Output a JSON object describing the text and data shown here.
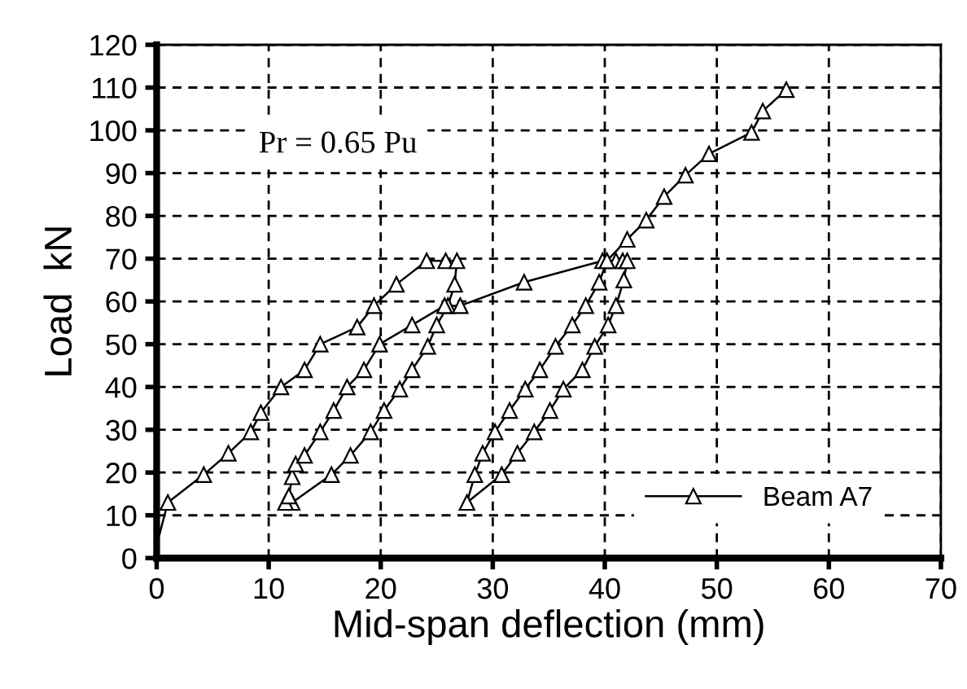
{
  "chart_data": {
    "type": "line",
    "xlabel": "Mid-span deflection (mm)",
    "ylabel": "Load  kN",
    "xlim": [
      0,
      70
    ],
    "ylim": [
      0,
      120
    ],
    "xticks": [
      0,
      10,
      20,
      30,
      40,
      50,
      60,
      70
    ],
    "yticks": [
      0,
      10,
      20,
      30,
      40,
      50,
      60,
      70,
      80,
      90,
      100,
      110,
      120
    ],
    "grid": true,
    "legend": "bottom right",
    "marker": "triangle",
    "line_style": "solid",
    "annotations": [
      "Pr = 0.65 Pu"
    ],
    "series": [
      {
        "name": "Beam A7",
        "color": "#000000",
        "x": [
          0,
          1.0,
          4.2,
          6.4,
          8.4,
          9.3,
          11.1,
          13.2,
          14.6,
          17.9,
          19.4,
          21.4,
          24.1,
          25.8,
          26.8,
          26.6,
          26.0,
          25.0,
          24.2,
          22.8,
          21.7,
          20.3,
          19.1,
          17.3,
          15.6,
          12.1,
          11.5,
          11.8,
          12.1,
          12.4,
          13.2,
          14.6,
          15.8,
          17.0,
          18.5,
          19.9,
          22.8,
          25.7,
          27.1,
          32.8,
          39.8,
          41.0,
          41.6,
          42.0,
          41.7,
          41.0,
          40.3,
          39.1,
          38.0,
          36.3,
          35.1,
          33.7,
          32.2,
          30.8,
          27.7,
          28.4,
          29.1,
          30.2,
          31.5,
          32.9,
          34.2,
          35.6,
          37.1,
          38.3,
          39.5,
          40.2,
          42.0,
          43.7,
          45.3,
          47.2,
          49.3,
          53.1,
          54.1,
          56.2
        ],
        "values": [
          3,
          13,
          19.5,
          24.5,
          29.5,
          34,
          40,
          44,
          50,
          54,
          59,
          64,
          69.5,
          69.5,
          69.5,
          64,
          59,
          54.5,
          49.5,
          44,
          39.5,
          34.5,
          29.5,
          24,
          19.5,
          13,
          13,
          14.5,
          19,
          22,
          24,
          29.5,
          34.5,
          40,
          44,
          50,
          54.5,
          59,
          59,
          64.5,
          69.5,
          69.5,
          69.5,
          69.5,
          65,
          59,
          54.5,
          49.5,
          44,
          39.5,
          34.5,
          29.5,
          24.5,
          19.5,
          13,
          19.5,
          24.5,
          29.5,
          34.5,
          39.5,
          44,
          49.5,
          54.5,
          59,
          64.5,
          69.5,
          74.5,
          79,
          84.5,
          89.5,
          94.5,
          99.5,
          104.5,
          109.5
        ]
      }
    ]
  }
}
